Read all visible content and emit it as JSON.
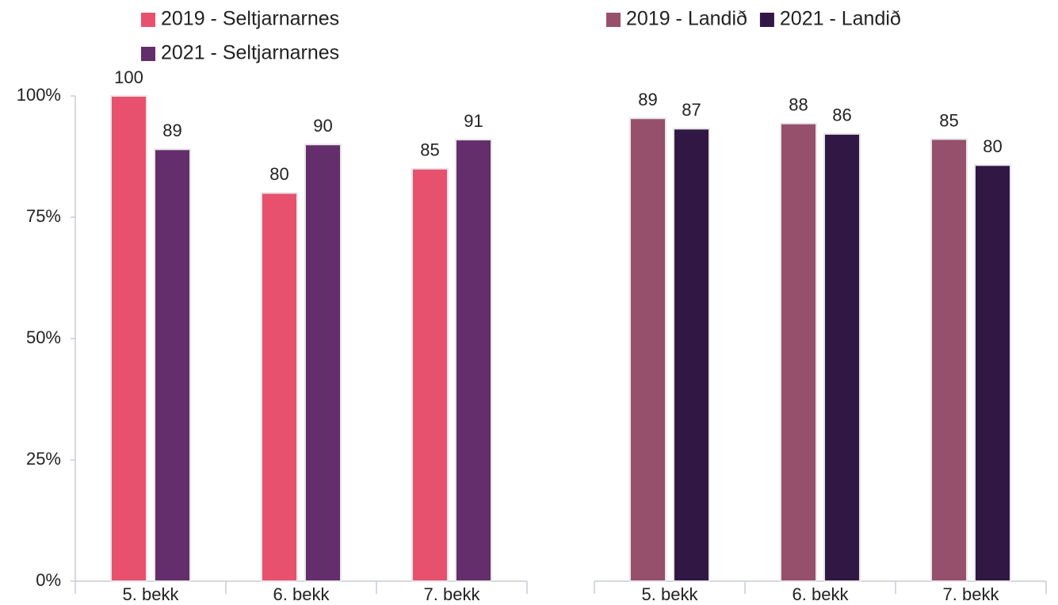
{
  "chart_data": [
    {
      "type": "bar",
      "categories": [
        "5. bekk",
        "6. bekk",
        "7. bekk"
      ],
      "series": [
        {
          "name": "2019 - Seltjarnarnes",
          "color": "#e8516e",
          "values": [
            100,
            80,
            85
          ]
        },
        {
          "name": "2021 - Seltjarnarnes",
          "color": "#632e6b",
          "values": [
            89,
            90,
            91
          ]
        }
      ],
      "ylim": [
        0,
        100
      ],
      "yticks": [
        {
          "value": 0,
          "label": "0%"
        },
        {
          "value": 25,
          "label": "25%"
        },
        {
          "value": 50,
          "label": "50%"
        },
        {
          "value": 75,
          "label": "75%"
        },
        {
          "value": 100,
          "label": "100%"
        }
      ]
    },
    {
      "type": "bar",
      "categories": [
        "5. bekk",
        "6. bekk",
        "7. bekk"
      ],
      "series": [
        {
          "name": "2019 - Landið",
          "color": "#96506b",
          "values": [
            89,
            88,
            85
          ]
        },
        {
          "name": "2021 - Landið",
          "color": "#311844",
          "values": [
            87,
            86,
            80
          ]
        }
      ],
      "ylim": [
        0,
        93.3
      ]
    }
  ]
}
